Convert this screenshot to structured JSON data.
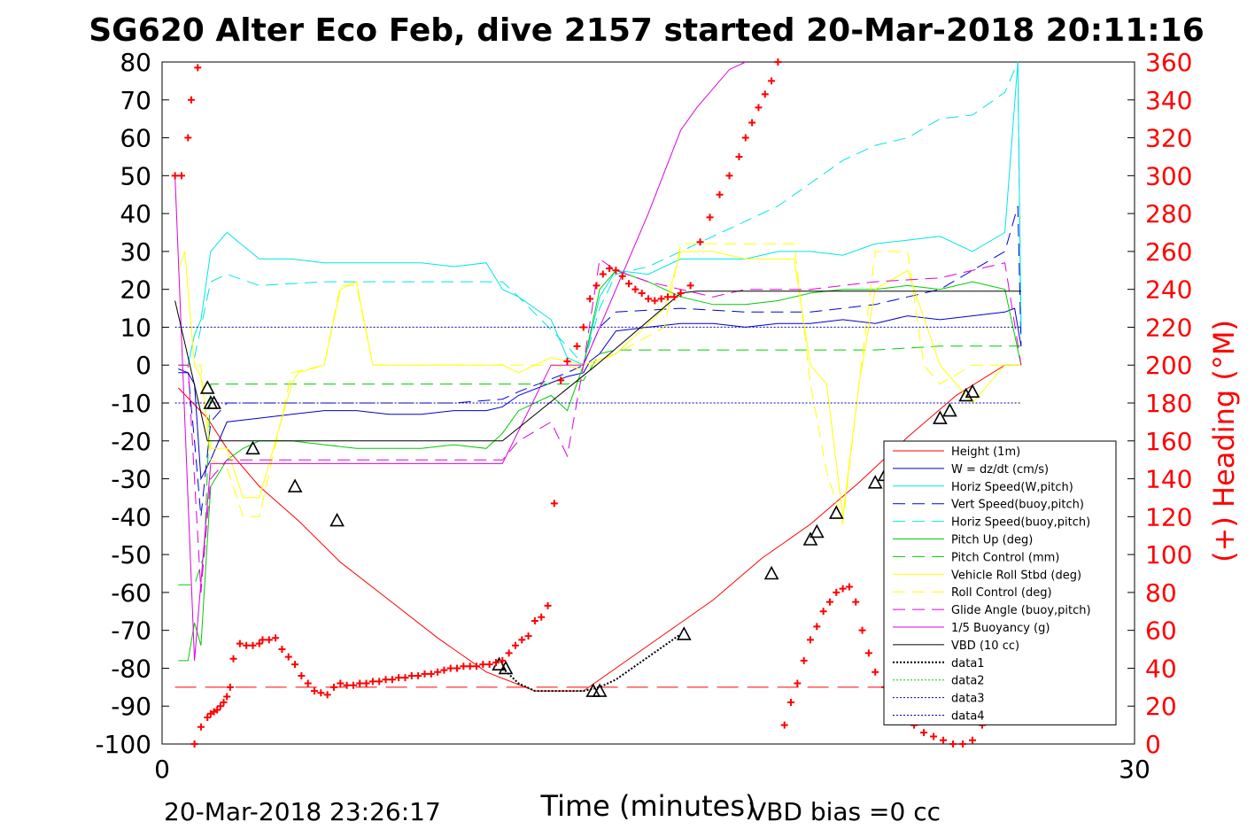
{
  "chart_data": {
    "type": "line",
    "title": "SG620 Alter Eco Feb, dive 2157 started 20-Mar-2018 20:11:16",
    "xlabel": "Time (minutes)",
    "ylabel_right": "(+) Heading (°M)",
    "xlim": [
      0,
      30
    ],
    "ylim_left": [
      -100,
      80
    ],
    "ylim_right": [
      0,
      360
    ],
    "x_ticks": [
      "0",
      "30"
    ],
    "y_ticks_left": [
      "80",
      "70",
      "60",
      "50",
      "40",
      "30",
      "20",
      "10",
      "0",
      "-10",
      "-20",
      "-30",
      "-40",
      "-50",
      "-60",
      "-70",
      "-80",
      "-90",
      "-100"
    ],
    "y_ticks_right": [
      "360",
      "340",
      "320",
      "300",
      "280",
      "260",
      "240",
      "220",
      "200",
      "180",
      "160",
      "140",
      "120",
      "100",
      "80",
      "60",
      "40",
      "20",
      "0"
    ],
    "legend": {
      "position": "bottom-right",
      "entries": [
        "Height (1m)",
        "W = dz/dt (cm/s)",
        "Horiz Speed(W,pitch)",
        "Vert Speed(buoy,pitch)",
        "Horiz Speed(buoy,pitch)",
        "Pitch Up (deg)",
        "Pitch Control (mm)",
        "Vehicle Roll Stbd (deg)",
        "Roll Control (deg)",
        "Glide Angle (buoy,pitch)",
        "1/5 Buoyancy (g)",
        "VBD (10 cc)",
        "data1",
        "data2",
        "data3",
        "data4"
      ]
    },
    "colors": {
      "height": "#ff0000",
      "w": "#0000cc",
      "horiz_w": "#00e5e5",
      "vert_buoy": "#0000dd",
      "horiz_buoy": "#00e5e5",
      "pitch": "#00cc00",
      "pitch_control": "#00cc00",
      "roll": "#ffff00",
      "roll_control": "#ffff00",
      "glide": "#dd00dd",
      "buoyancy": "#dd00dd",
      "vbd": "#000000",
      "data": "#00cc00",
      "data4": "#0000aa",
      "heading": "#ff0000"
    },
    "series": [
      {
        "name": "Height (1m)",
        "x": [
          0.5,
          1.4,
          2.0,
          3.0,
          4.2,
          5.5,
          7.0,
          8.5,
          10.0,
          11.5,
          13.0,
          14.0,
          15.5,
          17.0,
          18.5,
          20.0,
          21.5,
          23.0,
          24.5,
          26.0,
          26.5
        ],
        "y": [
          -6,
          -14,
          -22,
          -32,
          -41,
          -52,
          -62,
          -72,
          -81,
          -86,
          -86,
          -80,
          -71,
          -62,
          -51,
          -42,
          -31,
          -19,
          -8,
          0,
          0
        ]
      },
      {
        "name": "W = dz/dt (cm/s)",
        "x": [
          0.5,
          0.8,
          1.0,
          1.2,
          1.5,
          2.0,
          3.0,
          4.0,
          5.0,
          6.0,
          7.0,
          8.0,
          9.0,
          10.0,
          10.5,
          11.0,
          12.5,
          13.0,
          13.2,
          13.5,
          14.0,
          15.0,
          16.0,
          17.0,
          18.0,
          19.0,
          20.0,
          21.0,
          22.0,
          23.0,
          24.0,
          25.0,
          26.0,
          26.3,
          26.5
        ],
        "y": [
          -2,
          -2,
          -5,
          -30,
          -25,
          -15,
          -14,
          -13,
          -12,
          -12,
          -13,
          -13,
          -12,
          -12,
          -11,
          -8,
          -3,
          -2,
          1,
          3,
          9,
          10,
          11,
          11,
          10,
          11,
          11,
          12,
          11,
          13,
          12,
          13,
          14,
          15,
          5
        ]
      },
      {
        "name": "Horiz Speed(W,pitch)",
        "x": [
          0.5,
          0.8,
          1.0,
          1.2,
          1.5,
          2.0,
          3.0,
          4.0,
          5.0,
          6.0,
          7.0,
          8.0,
          9.0,
          10.0,
          10.5,
          11.0,
          12.0,
          12.5,
          13.0,
          13.5,
          14.0,
          15.0,
          16.0,
          17.0,
          18.0,
          19.0,
          20.0,
          21.0,
          22.0,
          23.0,
          24.0,
          25.0,
          26.0,
          26.4,
          26.5
        ],
        "y": [
          0,
          0,
          8,
          12,
          30,
          35,
          28,
          28,
          27,
          27,
          27,
          27,
          26,
          27,
          20,
          18,
          12,
          2,
          0,
          18,
          25,
          24,
          28,
          28,
          28,
          30,
          30,
          29,
          32,
          33,
          34,
          30,
          35,
          80,
          8
        ]
      },
      {
        "name": "Vert Speed(buoy,pitch)",
        "x": [
          0.5,
          0.8,
          1.0,
          1.2,
          1.5,
          2.0,
          3.0,
          5.0,
          7.0,
          9.0,
          10.5,
          11.0,
          12.5,
          13.0,
          13.5,
          14.0,
          16.0,
          18.0,
          20.0,
          22.0,
          23.0,
          24.0,
          25.0,
          26.0,
          26.4,
          26.5
        ],
        "y": [
          -1,
          -2,
          -20,
          -40,
          -15,
          -10,
          -10,
          -10,
          -10,
          -10,
          -9,
          -7,
          -2,
          0,
          10,
          14,
          15,
          14,
          14,
          16,
          18,
          20,
          25,
          30,
          42,
          5
        ]
      },
      {
        "name": "Horiz Speed(buoy,pitch)",
        "x": [
          0.5,
          0.8,
          1.0,
          1.2,
          1.5,
          2.0,
          3.0,
          5.0,
          7.0,
          9.0,
          10.5,
          11.0,
          12.5,
          13.0,
          13.5,
          14.0,
          15.0,
          16.0,
          17.0,
          18.0,
          19.0,
          20.0,
          21.0,
          22.0,
          23.0,
          24.0,
          25.0,
          26.0,
          26.4,
          26.5
        ],
        "y": [
          0,
          0,
          2,
          10,
          22,
          24,
          21,
          22,
          22,
          22,
          22,
          18,
          5,
          0,
          15,
          24,
          26,
          30,
          34,
          38,
          42,
          48,
          54,
          58,
          60,
          65,
          66,
          72,
          80,
          8
        ]
      },
      {
        "name": "Pitch Up (deg)",
        "x": [
          0.5,
          0.8,
          1.0,
          1.2,
          1.5,
          2.0,
          2.5,
          3.0,
          4.0,
          5.0,
          6.0,
          7.0,
          8.0,
          9.0,
          10.0,
          10.5,
          11.0,
          12.0,
          12.5,
          13.0,
          13.5,
          14.0,
          15.0,
          16.0,
          17.0,
          18.0,
          19.0,
          20.0,
          21.0,
          22.0,
          23.0,
          24.0,
          25.0,
          26.0,
          26.5
        ],
        "y": [
          -78,
          -78,
          -68,
          -74,
          -32,
          -25,
          -22,
          -20,
          -20,
          -21,
          -22,
          -22,
          -22,
          -21,
          -22,
          -18,
          -12,
          -8,
          -12,
          0,
          20,
          25,
          22,
          18,
          16,
          16,
          17,
          19,
          20,
          20,
          21,
          20,
          22,
          20,
          0
        ]
      },
      {
        "name": "Pitch Control (mm)",
        "x": [
          0.5,
          1.0,
          1.3,
          1.5,
          2.0,
          4.0,
          6.0,
          8.0,
          10.0,
          11.0,
          12.5,
          13.0,
          13.5,
          14.0,
          16.0,
          18.0,
          20.0,
          22.0,
          24.0,
          26.0,
          26.5
        ],
        "y": [
          -58,
          -58,
          -50,
          -5,
          -5,
          -5,
          -5,
          -5,
          -5,
          -5,
          -5,
          -4,
          3,
          4,
          4,
          4,
          4,
          4,
          5,
          5,
          5
        ]
      },
      {
        "name": "Vehicle Roll Stbd (deg)",
        "x": [
          0.5,
          0.7,
          1.0,
          1.2,
          1.5,
          2.0,
          2.5,
          3.0,
          4.0,
          4.2,
          5.0,
          5.5,
          6.0,
          6.5,
          8.0,
          9.0,
          10.0,
          10.5,
          11.0,
          12.0,
          13.0,
          14.0,
          15.5,
          16.0,
          17.0,
          18.0,
          19.5,
          20.0,
          20.5,
          21.0,
          21.5,
          22.0,
          23.0,
          24.0,
          25.0,
          26.0,
          26.5
        ],
        "y": [
          25,
          30,
          0,
          -3,
          -22,
          -22,
          -35,
          -35,
          -5,
          -2,
          0,
          20,
          22,
          0,
          0,
          0,
          0,
          0,
          -2,
          2,
          0,
          3,
          15,
          30,
          30,
          28,
          28,
          0,
          -5,
          -40,
          -5,
          20,
          25,
          0,
          -10,
          0,
          0
        ]
      },
      {
        "name": "Roll Control (deg)",
        "x": [
          0.5,
          1.2,
          1.5,
          2.0,
          2.5,
          3.0,
          4.0,
          5.0,
          5.5,
          6.0,
          6.5,
          8.0,
          10.0,
          11.0,
          12.0,
          13.0,
          14.0,
          15.5,
          16.0,
          17.0,
          18.0,
          19.5,
          20.0,
          20.5,
          21.0,
          21.5,
          22.0,
          23.0,
          23.5,
          24.0,
          25.0,
          26.0,
          26.5
        ],
        "y": [
          0,
          0,
          -25,
          -27,
          -40,
          -40,
          -2,
          0,
          21,
          21,
          0,
          0,
          0,
          0,
          0,
          -1,
          3,
          10,
          32,
          32,
          32,
          32,
          -5,
          -28,
          -42,
          -5,
          30,
          30,
          0,
          -5,
          0,
          0,
          0
        ]
      },
      {
        "name": "Glide Angle (buoy,pitch)",
        "x": [
          0.5,
          0.8,
          1.0,
          1.2,
          1.5,
          2.0,
          3.0,
          5.0,
          7.0,
          9.0,
          10.5,
          11.0,
          12.0,
          12.5,
          13.0,
          13.5,
          14.0,
          15.0,
          16.0,
          17.0,
          18.0,
          20.0,
          22.0,
          24.0,
          26.0,
          26.5
        ],
        "y": [
          0,
          0,
          -30,
          -60,
          -30,
          -25,
          -25,
          -25,
          -25,
          -25,
          -25,
          -20,
          -15,
          -24,
          0,
          28,
          25,
          22,
          20,
          18,
          20,
          20,
          22,
          23,
          27,
          0
        ]
      },
      {
        "name": "1/5 Buoyancy (g)",
        "x": [
          0.4,
          1.0,
          1.5,
          2.0,
          4.0,
          6.0,
          8.0,
          10.0,
          10.5,
          12.0,
          13.0,
          14.0,
          15.0,
          16.0,
          16.5,
          17.5,
          18.0
        ],
        "y": [
          50,
          -78,
          -26,
          -26,
          -26,
          -26,
          -26,
          -26,
          -26,
          0,
          0,
          20,
          40,
          62,
          68,
          78,
          80
        ]
      },
      {
        "name": "VBD (10 cc)",
        "x": [
          0.4,
          1.4,
          10.5,
          13.4,
          16.0,
          16.5,
          26.5
        ],
        "y": [
          17,
          -20,
          -20,
          0,
          19,
          19.5,
          19.5
        ]
      },
      {
        "name": "data4",
        "x": [
          0.4,
          26.5
        ],
        "y": [
          10,
          10
        ]
      },
      {
        "name": "data3",
        "x": [
          0.4,
          26.5
        ],
        "y": [
          -10,
          -10
        ]
      },
      {
        "name": "data1",
        "x": [
          10.5,
          11.0,
          11.5,
          12.0,
          12.5,
          13.0,
          13.5,
          14.0,
          14.5,
          15.0,
          15.5,
          16.0
        ],
        "y": [
          -80,
          -84,
          -86,
          -86,
          -86,
          -86,
          -85,
          -83,
          -80,
          -77,
          -74,
          -71
        ]
      }
    ],
    "markers": {
      "x": [
        1.4,
        1.5,
        1.6,
        2.8,
        4.1,
        5.4,
        10.4,
        10.6,
        13.3,
        13.5,
        16.1,
        18.8,
        20.0,
        20.2,
        20.8,
        22.0,
        22.3,
        24.0,
        24.3,
        24.8,
        25.0
      ],
      "y": [
        -6,
        -10,
        -10,
        -22,
        -32,
        -41,
        -79,
        -80,
        -86,
        -86,
        -71,
        -55,
        -46,
        -44,
        -39,
        -31,
        -29,
        -14,
        -12,
        -8,
        -7
      ]
    },
    "heading_series": {
      "name": "(+) Heading (°M)",
      "x": [
        0.4,
        0.6,
        0.8,
        0.9,
        1.1,
        1.0,
        1.2,
        1.4,
        1.5,
        1.6,
        1.7,
        1.8,
        1.9,
        2.0,
        2.1,
        2.2,
        2.4,
        2.6,
        2.8,
        3.0,
        3.1,
        3.3,
        3.5,
        3.7,
        3.9,
        4.1,
        4.3,
        4.5,
        4.7,
        4.9,
        5.1,
        5.3,
        5.5,
        5.7,
        5.9,
        6.1,
        6.3,
        6.5,
        6.7,
        6.9,
        7.1,
        7.3,
        7.5,
        7.7,
        7.9,
        8.1,
        8.3,
        8.5,
        8.7,
        8.9,
        9.1,
        9.3,
        9.5,
        9.7,
        9.9,
        10.1,
        10.3,
        10.5,
        10.7,
        10.9,
        11.1,
        11.3,
        11.5,
        11.7,
        11.9,
        12.1,
        12.3,
        12.5,
        12.8,
        13.0,
        13.2,
        13.4,
        13.6,
        13.8,
        14.0,
        14.2,
        14.4,
        14.6,
        14.8,
        15.0,
        15.2,
        15.4,
        15.6,
        15.8,
        16.0,
        16.3,
        16.6,
        16.9,
        17.2,
        17.5,
        17.8,
        18.0,
        18.2,
        18.4,
        18.6,
        18.8,
        19.0,
        19.2,
        19.4,
        19.6,
        19.8,
        20.0,
        20.2,
        20.4,
        20.6,
        20.8,
        21.0,
        21.2,
        21.4,
        21.6,
        21.8,
        22.0,
        22.3,
        22.6,
        22.9,
        23.2,
        23.5,
        23.8,
        24.1,
        24.4,
        24.7,
        25.0,
        25.3,
        25.6,
        25.9,
        26.2
      ],
      "y": [
        300,
        300,
        320,
        340,
        357,
        0,
        9,
        14,
        16,
        17,
        18,
        20,
        22,
        25,
        30,
        45,
        53,
        52,
        52,
        53,
        55,
        55,
        56,
        50,
        46,
        42,
        36,
        32,
        28,
        27,
        26,
        30,
        32,
        31,
        31,
        32,
        32,
        33,
        33,
        34,
        34,
        35,
        35,
        36,
        36,
        37,
        37,
        38,
        39,
        40,
        40,
        41,
        41,
        41,
        42,
        42,
        43,
        44,
        48,
        52,
        55,
        57,
        65,
        67,
        73,
        127,
        192,
        202,
        210,
        220,
        235,
        242,
        248,
        251,
        250,
        247,
        243,
        240,
        238,
        235,
        234,
        235,
        236,
        236,
        238,
        242,
        265,
        278,
        290,
        300,
        310,
        320,
        328,
        336,
        343,
        350,
        360,
        10,
        22,
        32,
        44,
        55,
        62,
        70,
        75,
        80,
        82,
        83,
        75,
        60,
        48,
        38,
        30,
        20,
        14,
        10,
        6,
        4,
        2,
        0,
        0,
        2,
        10,
        13,
        15,
        17
      ]
    },
    "heading_reference": 30,
    "annotations": {
      "footer_left": "20-Mar-2018 23:26:17",
      "footer_right": "VBD bias =0 cc"
    }
  }
}
